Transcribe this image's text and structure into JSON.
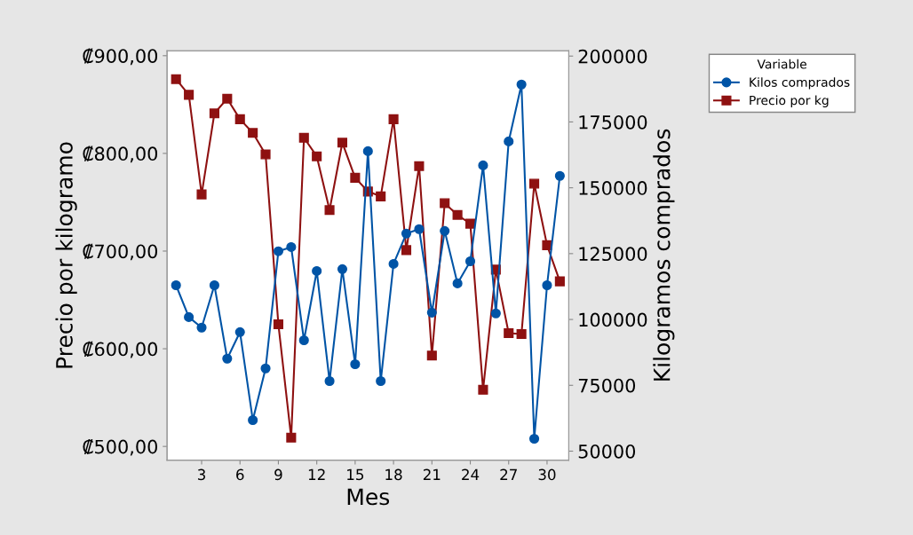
{
  "chart_data": {
    "type": "line",
    "xlabel": "Mes",
    "ylabel": "Precio por kilogramo",
    "y2label": "Kilogramos comprados",
    "legend_title": "Variable",
    "legend": "top right",
    "x": [
      1,
      2,
      3,
      4,
      5,
      6,
      7,
      8,
      9,
      10,
      11,
      12,
      13,
      14,
      15,
      16,
      17,
      18,
      19,
      20,
      21,
      22,
      23,
      24,
      25,
      26,
      27,
      28,
      29,
      30,
      31
    ],
    "series": [
      {
        "name": "Kilos comprados",
        "color": "#0054a6",
        "marker": "circle",
        "axis": "y2",
        "values": [
          113000,
          100900,
          96900,
          113000,
          85100,
          95200,
          61800,
          81400,
          125900,
          127500,
          92100,
          118400,
          76600,
          119100,
          83000,
          163900,
          76600,
          121100,
          132600,
          134300,
          102600,
          133600,
          113700,
          122100,
          158500,
          102300,
          167600,
          189200,
          54700,
          113000,
          154500
        ]
      },
      {
        "name": "Precio por kg",
        "color": "#8e1111",
        "marker": "square",
        "values": [
          876,
          860,
          758,
          841,
          856,
          835,
          821,
          799,
          625,
          509,
          816,
          797,
          742,
          811,
          775,
          761,
          756,
          835,
          701,
          787,
          593,
          749,
          737,
          728,
          558,
          681,
          616,
          615,
          769,
          706,
          669
        ]
      }
    ],
    "xlim": [
      0.3,
      31.7
    ],
    "xticks": [
      3,
      6,
      9,
      12,
      15,
      18,
      21,
      24,
      27,
      30
    ],
    "ylim": [
      486,
      905
    ],
    "yticks": [
      {
        "value": 500,
        "label": "₡500,00"
      },
      {
        "value": 600,
        "label": "₡600,00"
      },
      {
        "value": 700,
        "label": "₡700,00"
      },
      {
        "value": 800,
        "label": "₡800,00"
      },
      {
        "value": 900,
        "label": "₡900,00"
      }
    ],
    "y2lim": [
      46600,
      202000
    ],
    "y2ticks": [
      50000,
      75000,
      100000,
      125000,
      150000,
      175000,
      200000
    ],
    "grid": false,
    "line_style": "solid"
  }
}
